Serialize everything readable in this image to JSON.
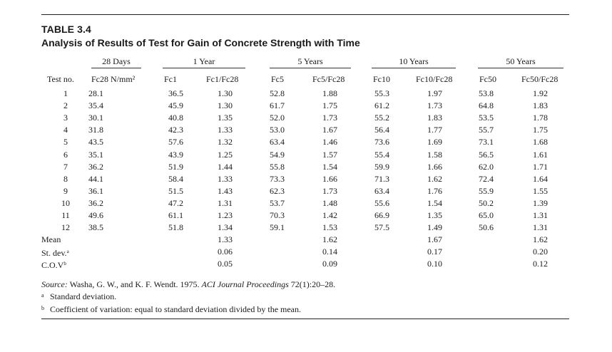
{
  "table": {
    "label": "TABLE 3.4",
    "title": "Analysis of Results of Test for Gain of Concrete Strength with Time",
    "group_headers": [
      "28 Days",
      "1 Year",
      "5 Years",
      "10 Years",
      "50 Years"
    ],
    "column_headers": [
      "Test no.",
      "Fc28 N/mm²",
      "Fc1",
      "Fc1/Fc28",
      "Fc5",
      "Fc5/Fc28",
      "Fc10",
      "Fc10/Fc28",
      "Fc50",
      "Fc50/Fc28"
    ],
    "rows": [
      [
        "1",
        "28.1",
        "36.5",
        "1.30",
        "52.8",
        "1.88",
        "55.3",
        "1.97",
        "53.8",
        "1.92"
      ],
      [
        "2",
        "35.4",
        "45.9",
        "1.30",
        "61.7",
        "1.75",
        "61.2",
        "1.73",
        "64.8",
        "1.83"
      ],
      [
        "3",
        "30.1",
        "40.8",
        "1.35",
        "52.0",
        "1.73",
        "55.2",
        "1.83",
        "53.5",
        "1.78"
      ],
      [
        "4",
        "31.8",
        "42.3",
        "1.33",
        "53.0",
        "1.67",
        "56.4",
        "1.77",
        "55.7",
        "1.75"
      ],
      [
        "5",
        "43.5",
        "57.6",
        "1.32",
        "63.4",
        "1.46",
        "73.6",
        "1.69",
        "73.1",
        "1.68"
      ],
      [
        "6",
        "35.1",
        "43.9",
        "1.25",
        "54.9",
        "1.57",
        "55.4",
        "1.58",
        "56.5",
        "1.61"
      ],
      [
        "7",
        "36.2",
        "51.9",
        "1.44",
        "55.8",
        "1.54",
        "59.9",
        "1.66",
        "62.0",
        "1.71"
      ],
      [
        "8",
        "44.1",
        "58.4",
        "1.33",
        "73.3",
        "1.66",
        "71.3",
        "1.62",
        "72.4",
        "1.64"
      ],
      [
        "9",
        "36.1",
        "51.5",
        "1.43",
        "62.3",
        "1.73",
        "63.4",
        "1.76",
        "55.9",
        "1.55"
      ],
      [
        "10",
        "36.2",
        "47.2",
        "1.31",
        "53.7",
        "1.48",
        "55.6",
        "1.54",
        "50.2",
        "1.39"
      ],
      [
        "11",
        "49.6",
        "61.1",
        "1.23",
        "70.3",
        "1.42",
        "66.9",
        "1.35",
        "65.0",
        "1.31"
      ],
      [
        "12",
        "38.5",
        "51.8",
        "1.34",
        "59.1",
        "1.53",
        "57.5",
        "1.49",
        "50.6",
        "1.31"
      ]
    ],
    "summary": [
      {
        "label": "Mean",
        "mark": "",
        "values": [
          "1.33",
          "1.62",
          "1.67",
          "1.62"
        ]
      },
      {
        "label": "St. dev.",
        "mark": "a",
        "values": [
          "0.06",
          "0.14",
          "0.17",
          "0.20"
        ]
      },
      {
        "label": "C.O.V",
        "mark": "b",
        "values": [
          "0.05",
          "0.09",
          "0.10",
          "0.12"
        ]
      }
    ]
  },
  "source": {
    "label": "Source:",
    "authors": " Washa, G. W., and K. F. Wendt. 1975. ",
    "journal": "ACI Journal Proceedings",
    "citation": " 72(1):20–28."
  },
  "footnotes": [
    {
      "mark": "a",
      "text": "Standard deviation."
    },
    {
      "mark": "b",
      "text": "Coefficient of variation: equal to standard deviation divided by the mean."
    }
  ]
}
